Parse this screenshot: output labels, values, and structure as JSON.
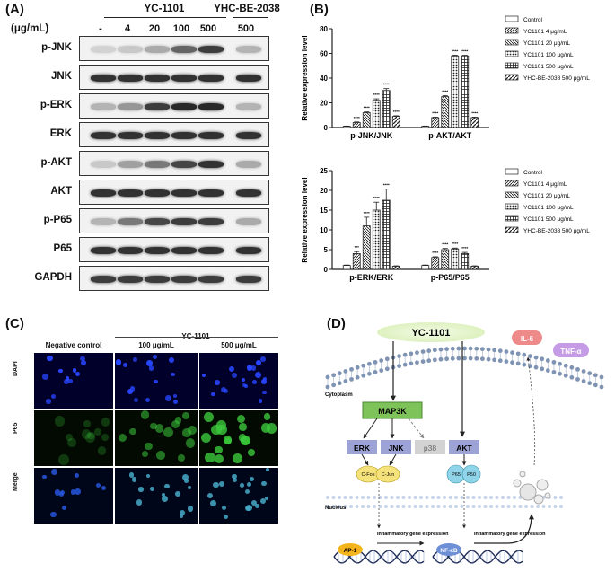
{
  "panels": {
    "a": "(A)",
    "b": "(B)",
    "c": "(C)",
    "d": "(D)"
  },
  "panel_a": {
    "unit_label": "(μg/mL)",
    "group_1": "YC-1101",
    "group_2": "YHC-BE-2038",
    "lanes": [
      "-",
      "4",
      "20",
      "100",
      "500",
      "500"
    ],
    "rows": [
      {
        "name": "p-JNK",
        "intensity": [
          0.1,
          0.15,
          0.3,
          0.65,
          0.85,
          0.25
        ]
      },
      {
        "name": "JNK",
        "intensity": [
          0.9,
          0.9,
          0.9,
          0.9,
          0.9,
          0.9
        ]
      },
      {
        "name": "p-ERK",
        "intensity": [
          0.25,
          0.4,
          0.85,
          0.95,
          0.95,
          0.25
        ]
      },
      {
        "name": "ERK",
        "intensity": [
          0.9,
          0.9,
          0.9,
          0.9,
          0.9,
          0.9
        ]
      },
      {
        "name": "p-AKT",
        "intensity": [
          0.15,
          0.35,
          0.55,
          0.8,
          0.9,
          0.3
        ]
      },
      {
        "name": "AKT",
        "intensity": [
          0.9,
          0.9,
          0.9,
          0.9,
          0.9,
          0.9
        ]
      },
      {
        "name": "p-P65",
        "intensity": [
          0.25,
          0.55,
          0.8,
          0.85,
          0.85,
          0.3
        ]
      },
      {
        "name": "P65",
        "intensity": [
          0.9,
          0.9,
          0.9,
          0.9,
          0.9,
          0.9
        ]
      },
      {
        "name": "GAPDH",
        "intensity": [
          0.85,
          0.85,
          0.85,
          0.85,
          0.85,
          0.85
        ]
      }
    ]
  },
  "chart_data": [
    {
      "type": "bar",
      "ylabel": "Relative expression level",
      "categories": [
        "p-JNK/JNK",
        "p-AKT/AKT"
      ],
      "ylim": [
        0,
        80
      ],
      "yticks": [
        0,
        20,
        40,
        60,
        80
      ],
      "series": [
        {
          "name": "Control",
          "values": [
            1,
            1
          ]
        },
        {
          "name": "YC1101 4 μg/mL",
          "values": [
            4,
            8
          ]
        },
        {
          "name": "YC1101 20 μg/mL",
          "values": [
            12,
            25
          ]
        },
        {
          "name": "YC1101 100 μg/mL",
          "values": [
            22,
            58
          ]
        },
        {
          "name": "YC1101 500 μg/mL",
          "values": [
            30,
            58
          ]
        },
        {
          "name": "YHC-BE-2038 500 μg/mL",
          "values": [
            9,
            8
          ]
        }
      ],
      "errors": [
        [
          0.2,
          0.2
        ],
        [
          0.5,
          0.4
        ],
        [
          0.6,
          0.8
        ],
        [
          1.2,
          0.6
        ],
        [
          1.5,
          0.5
        ],
        [
          0.5,
          0.4
        ]
      ],
      "annotations": [
        [
          "",
          ""
        ],
        [
          "****",
          "****"
        ],
        [
          "****",
          "****"
        ],
        [
          "****",
          "****"
        ],
        [
          "****",
          "****"
        ],
        [
          "****",
          "****"
        ]
      ],
      "legend": "right"
    },
    {
      "type": "bar",
      "ylabel": "Relative expression level",
      "categories": [
        "p-ERK/ERK",
        "p-P65/P65"
      ],
      "ylim": [
        0,
        25
      ],
      "yticks": [
        0,
        5,
        10,
        15,
        20,
        25
      ],
      "series": [
        {
          "name": "Control",
          "values": [
            1,
            1
          ]
        },
        {
          "name": "YC1101 4 μg/mL",
          "values": [
            4,
            3
          ]
        },
        {
          "name": "YC1101 20 μg/mL",
          "values": [
            11,
            5
          ]
        },
        {
          "name": "YC1101 100 μg/mL",
          "values": [
            15,
            5.2
          ]
        },
        {
          "name": "YC1101 500 μg/mL",
          "values": [
            17.5,
            4
          ]
        },
        {
          "name": "YHC-BE-2038 500 μg/mL",
          "values": [
            0.8,
            0.8
          ]
        }
      ],
      "errors": [
        [
          0.1,
          0.1
        ],
        [
          0.5,
          0.2
        ],
        [
          2.2,
          0.3
        ],
        [
          2.0,
          0.2
        ],
        [
          2.8,
          0.3
        ],
        [
          0.1,
          0.1
        ]
      ],
      "annotations": [
        [
          "",
          ""
        ],
        [
          "***",
          "****"
        ],
        [
          "****",
          "****"
        ],
        [
          "****",
          "****"
        ],
        [
          "****",
          "****"
        ],
        [
          "",
          ""
        ]
      ],
      "legend": "right"
    }
  ],
  "panel_c": {
    "col_group": "YC-1101",
    "columns": [
      "Negative control",
      "100 μg/mL",
      "500 μg/mL"
    ],
    "rows": [
      "DAPI",
      "P65",
      "Merge"
    ]
  },
  "panel_d": {
    "agent": "YC-1101",
    "cytoplasm": "Cytoplasm",
    "nucleus": "Nucleus",
    "map3k": "MAP3K",
    "erk": "ERK",
    "jnk": "JNK",
    "p38": "p38",
    "akt": "AKT",
    "cfos": "C-Fos",
    "cjun": "C-Jun",
    "p65": "P65",
    "p50": "P50",
    "il6": "IL-6",
    "tnfa": "TNF-α",
    "ap1": "AP-1",
    "nfkb": "NF-κB",
    "gene_expr": "Inflammatory gene expression"
  },
  "colors": {
    "map3k": "#7ec35a",
    "kinase": "#9ea3d6",
    "p38": "#c8c8c8",
    "cfos": "#f6e27a",
    "p65": "#8fd4e8",
    "ap1": "#f3b51b",
    "nfkb": "#6c8fd6",
    "il6": "#ef8a8a",
    "tnfa": "#c59be6"
  }
}
